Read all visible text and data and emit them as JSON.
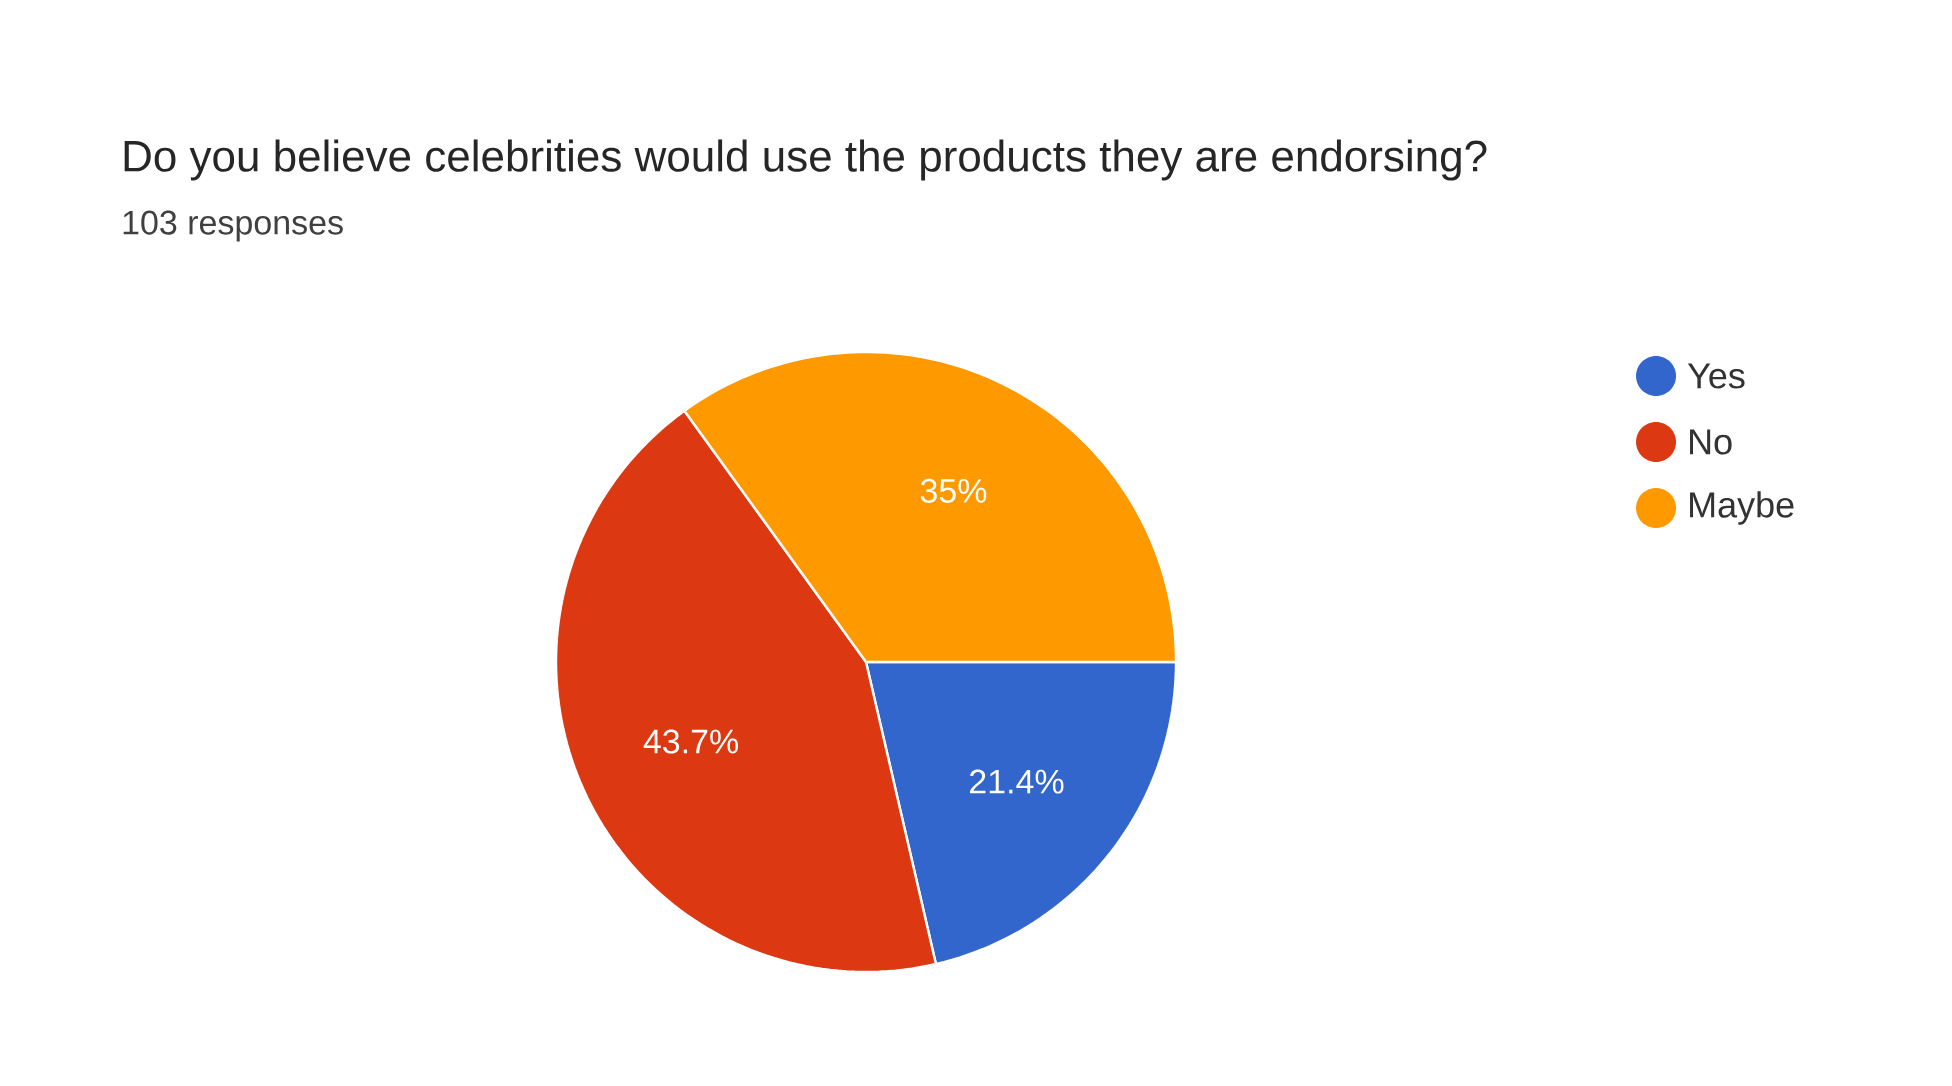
{
  "chart_data": {
    "type": "pie",
    "title": "Do you believe celebrities would use the products they are endorsing?",
    "subtitle": "103 responses",
    "categories": [
      "Yes",
      "No",
      "Maybe"
    ],
    "values": [
      21.4,
      43.7,
      35
    ],
    "colors": [
      "#3366cc",
      "#dc3912",
      "#ff9900"
    ],
    "value_labels": [
      "21.4%",
      "43.7%",
      "35%"
    ],
    "legend": "right"
  }
}
